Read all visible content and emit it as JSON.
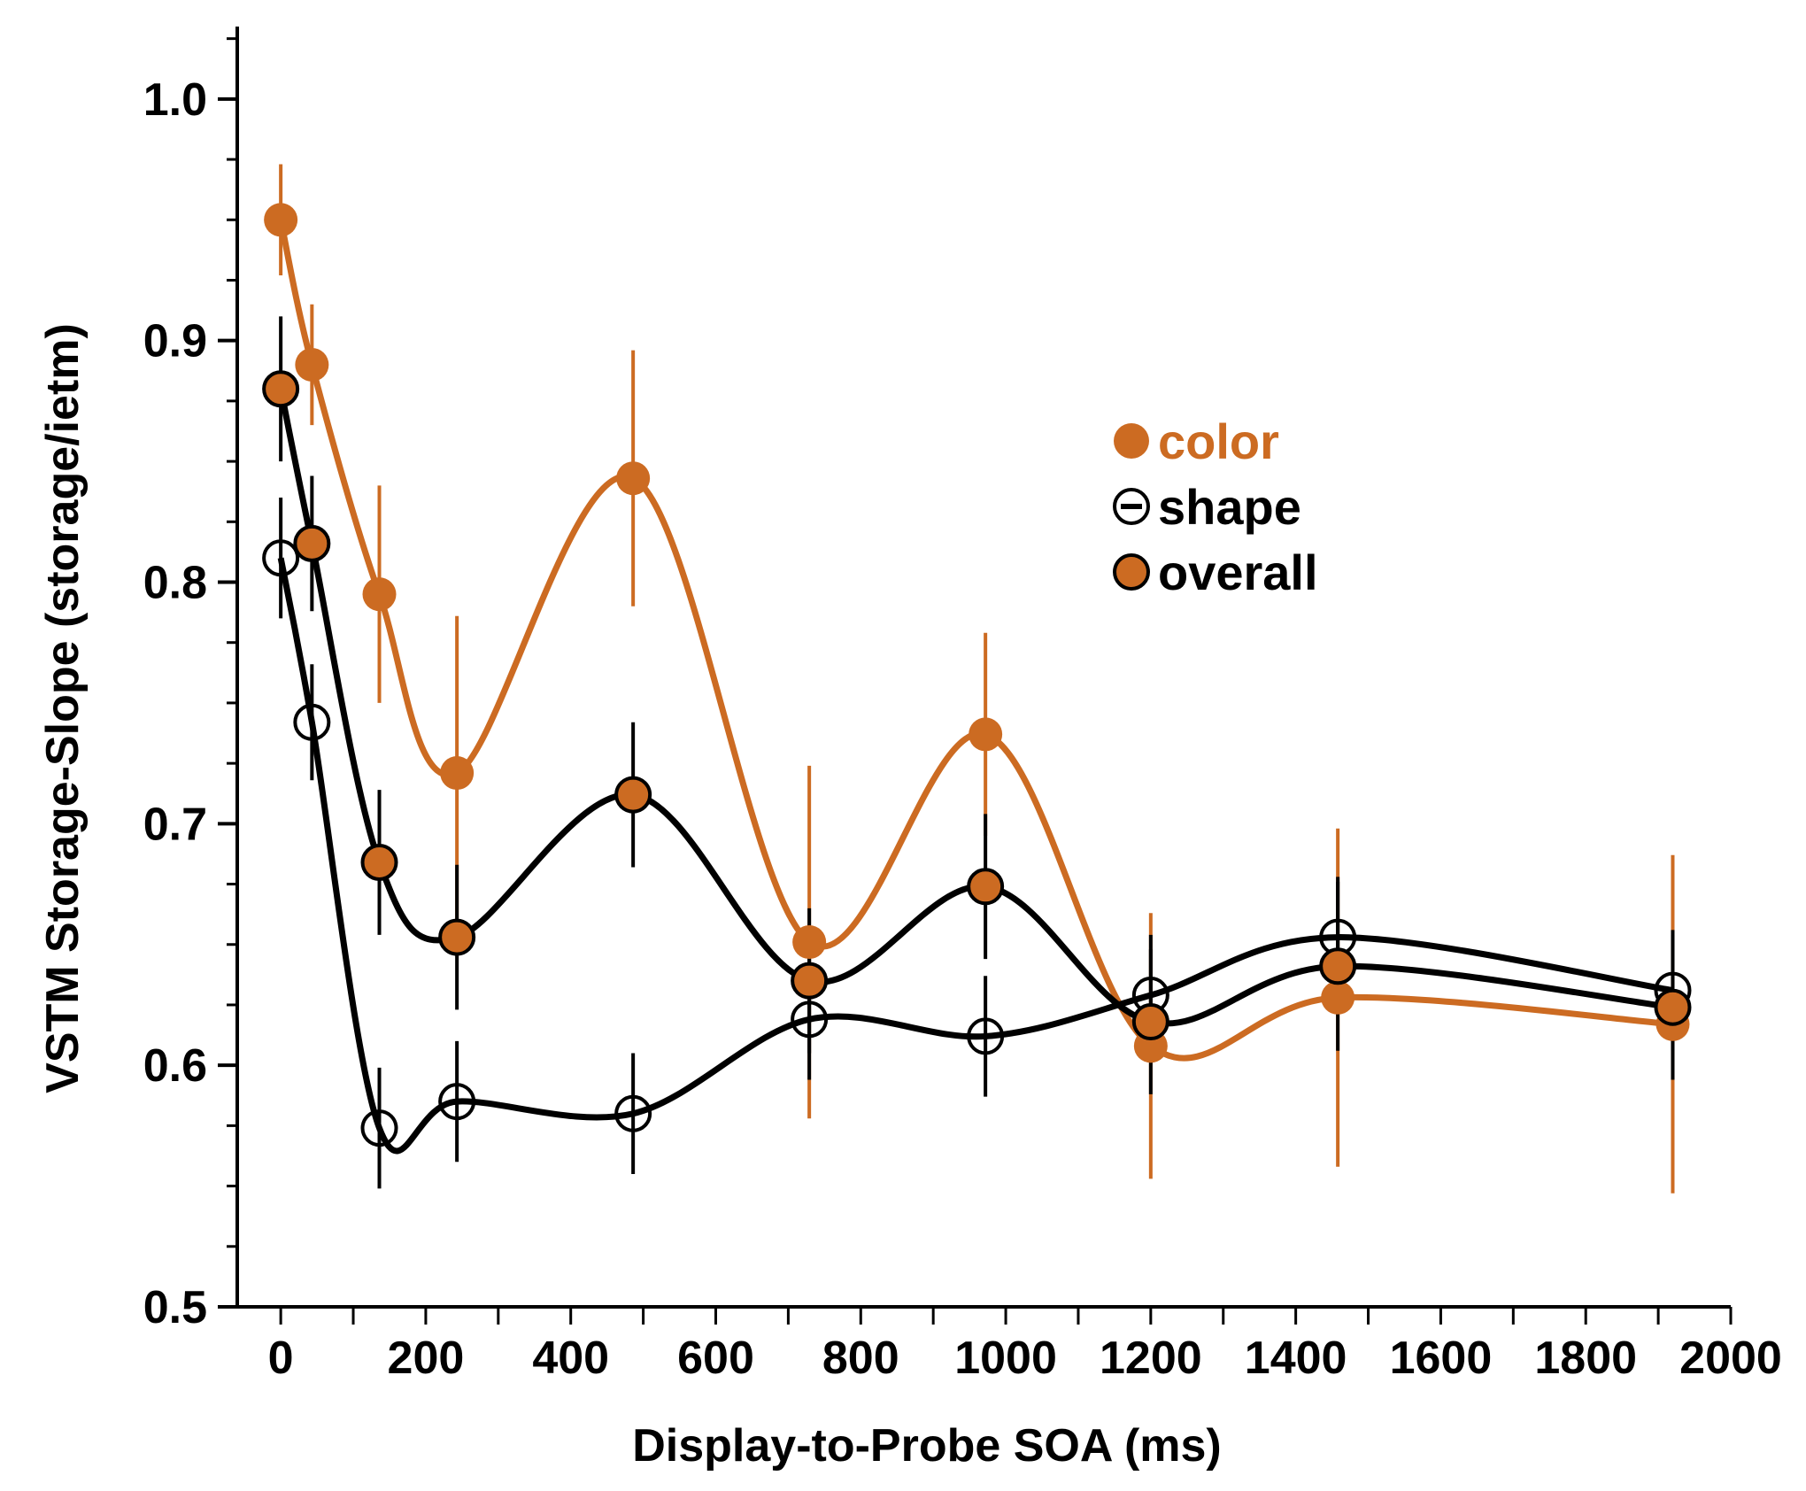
{
  "chart_data": {
    "type": "line",
    "title": "",
    "xlabel": "Display-to-Probe SOA (ms)",
    "ylabel": "VSTM Storage-Slope (storage/ietm)",
    "xlim": [
      -60,
      2000
    ],
    "ylim": [
      0.5,
      1.03
    ],
    "xticks": [
      0,
      200,
      400,
      600,
      800,
      1000,
      1200,
      1400,
      1600,
      1800,
      2000
    ],
    "xtick_labels": [
      "0",
      "200",
      "400",
      "600",
      "800",
      "1000",
      "1200",
      "1400",
      "1600",
      "1800",
      "2000"
    ],
    "yticks": [
      0.5,
      0.6,
      0.7,
      0.8,
      0.9,
      1.0
    ],
    "ytick_labels": [
      "0.5",
      "0.6",
      "0.7",
      "0.8",
      "0.9",
      "1.0"
    ],
    "y_minor_step": 0.025,
    "legend_position": "upper-right",
    "x": [
      0,
      43,
      136,
      243,
      486,
      729,
      972,
      1200,
      1458,
      1920
    ],
    "series": [
      {
        "name": "color",
        "label": "color",
        "marker": "filled",
        "color": "#cc6b22",
        "values": [
          0.95,
          0.89,
          0.795,
          0.721,
          0.843,
          0.651,
          0.737,
          0.608,
          0.628,
          0.617
        ],
        "err": [
          0.023,
          0.025,
          0.045,
          0.065,
          0.053,
          0.073,
          0.042,
          0.055,
          0.07,
          0.07
        ]
      },
      {
        "name": "shape",
        "label": "shape",
        "marker": "open",
        "color": "#000000",
        "values": [
          0.81,
          0.742,
          0.574,
          0.585,
          0.58,
          0.619,
          0.612,
          0.629,
          0.653,
          0.631
        ],
        "err": [
          0.025,
          0.024,
          0.025,
          0.025,
          0.025,
          0.025,
          0.025,
          0.025,
          0.025,
          0.025
        ]
      },
      {
        "name": "overall",
        "label": "overall",
        "marker": "filled-outlined",
        "color": "#cc6b22",
        "line_color": "#000000",
        "values": [
          0.88,
          0.816,
          0.684,
          0.653,
          0.712,
          0.635,
          0.674,
          0.618,
          0.641,
          0.624
        ],
        "err": [
          0.03,
          0.028,
          0.03,
          0.03,
          0.03,
          0.03,
          0.03,
          0.03,
          0.035,
          0.03
        ]
      }
    ]
  }
}
